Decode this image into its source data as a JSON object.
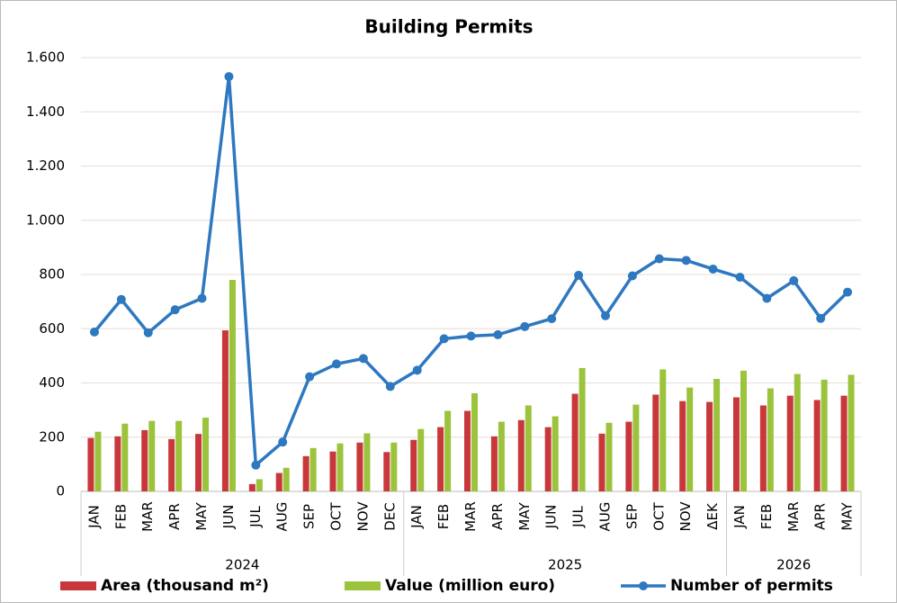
{
  "chart_data": {
    "type": "bar-line",
    "title": "Building Permits",
    "groups": [
      {
        "label": "2024",
        "categories": [
          "JAN",
          "FEB",
          "MAR",
          "APR",
          "MAY",
          "JUN",
          "JUL",
          "AUG",
          "SEP",
          "OCT",
          "NOV",
          "DEC"
        ]
      },
      {
        "label": "2025",
        "categories": [
          "JAN",
          "FEB",
          "MAR",
          "APR",
          "MAY",
          "JUN",
          "JUL",
          "AUG",
          "SEP",
          "OCT",
          "NOV",
          "ΔΕΚ"
        ]
      },
      {
        "label": "2026",
        "categories": [
          "JAN",
          "FEB",
          "MAR",
          "APR",
          "MAY"
        ]
      }
    ],
    "series": [
      {
        "name": "Area (thousand m²)",
        "type": "bar",
        "color": "#c8373a",
        "values": [
          197,
          203,
          226,
          193,
          212,
          594,
          27,
          68,
          130,
          147,
          180,
          145,
          190,
          237,
          297,
          203,
          263,
          237,
          360,
          213,
          257,
          357,
          333,
          330,
          347,
          317,
          353,
          337,
          353
        ]
      },
      {
        "name": "Value (million euro)",
        "type": "bar",
        "color": "#9bc33c",
        "values": [
          220,
          250,
          260,
          260,
          272,
          780,
          45,
          87,
          160,
          177,
          214,
          180,
          230,
          297,
          362,
          257,
          317,
          277,
          455,
          253,
          320,
          450,
          383,
          415,
          445,
          380,
          433,
          412,
          430
        ]
      },
      {
        "name": "Number of permits",
        "type": "line",
        "color": "#2e78c0",
        "values": [
          588,
          708,
          585,
          670,
          712,
          1530,
          97,
          182,
          423,
          470,
          490,
          387,
          447,
          563,
          573,
          578,
          608,
          637,
          797,
          648,
          795,
          858,
          852,
          820,
          790,
          712,
          777,
          638,
          735
        ]
      }
    ],
    "ylim": [
      0,
      1600
    ],
    "yticks": [
      0,
      200,
      400,
      600,
      800,
      {
        "value": 1000,
        "label": "1.000"
      },
      {
        "value": 1200,
        "label": "1.200"
      },
      {
        "value": 1400,
        "label": "1.400"
      },
      {
        "value": 1600,
        "label": "1.600"
      }
    ],
    "grid": true
  }
}
